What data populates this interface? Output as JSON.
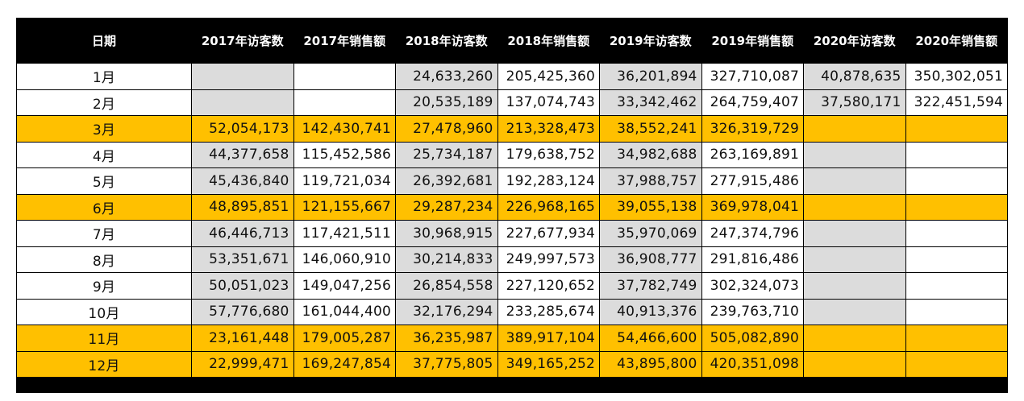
{
  "table": {
    "headers": [
      "日期",
      "2017年访客数",
      "2017年销售额",
      "2018年访客数",
      "2018年销售额",
      "2019年访客数",
      "2019年销售额",
      "2020年访客数",
      "2020年销售额"
    ],
    "highlight_color": "#ffc000",
    "shaded_color": "#dcdcdc",
    "rows": [
      {
        "month": "1月",
        "highlight": false,
        "values": [
          "",
          "",
          "24,633,260",
          "205,425,360",
          "36,201,894",
          "327,710,087",
          "40,878,635",
          "350,302,051"
        ]
      },
      {
        "month": "2月",
        "highlight": false,
        "values": [
          "",
          "",
          "20,535,189",
          "137,074,743",
          "33,342,462",
          "264,759,407",
          "37,580,171",
          "322,451,594"
        ]
      },
      {
        "month": "3月",
        "highlight": true,
        "values": [
          "52,054,173",
          "142,430,741",
          "27,478,960",
          "213,328,473",
          "38,552,241",
          "326,319,729",
          "",
          ""
        ]
      },
      {
        "month": "4月",
        "highlight": false,
        "values": [
          "44,377,658",
          "115,452,586",
          "25,734,187",
          "179,638,752",
          "34,982,688",
          "263,169,891",
          "",
          ""
        ]
      },
      {
        "month": "5月",
        "highlight": false,
        "values": [
          "45,436,840",
          "119,721,034",
          "26,392,681",
          "192,283,124",
          "37,988,757",
          "277,915,486",
          "",
          ""
        ]
      },
      {
        "month": "6月",
        "highlight": true,
        "values": [
          "48,895,851",
          "121,155,667",
          "29,287,234",
          "226,968,165",
          "39,055,138",
          "369,978,041",
          "",
          ""
        ]
      },
      {
        "month": "7月",
        "highlight": false,
        "values": [
          "46,446,713",
          "117,421,511",
          "30,968,915",
          "227,677,934",
          "35,970,069",
          "247,374,796",
          "",
          ""
        ]
      },
      {
        "month": "8月",
        "highlight": false,
        "values": [
          "53,351,671",
          "146,060,910",
          "30,214,833",
          "249,997,573",
          "36,908,777",
          "291,816,486",
          "",
          ""
        ]
      },
      {
        "month": "9月",
        "highlight": false,
        "values": [
          "50,051,023",
          "149,047,256",
          "26,854,558",
          "227,120,652",
          "37,782,749",
          "302,324,073",
          "",
          ""
        ]
      },
      {
        "month": "10月",
        "highlight": false,
        "values": [
          "57,776,680",
          "161,044,400",
          "32,176,294",
          "233,285,674",
          "40,913,376",
          "239,763,710",
          "",
          ""
        ]
      },
      {
        "month": "11月",
        "highlight": true,
        "values": [
          "23,161,448",
          "179,005,287",
          "36,235,987",
          "389,917,104",
          "54,466,600",
          "505,082,890",
          "",
          ""
        ]
      },
      {
        "month": "12月",
        "highlight": true,
        "values": [
          "22,999,471",
          "169,247,854",
          "37,775,805",
          "349,165,252",
          "43,895,800",
          "420,351,098",
          "",
          ""
        ]
      }
    ]
  }
}
